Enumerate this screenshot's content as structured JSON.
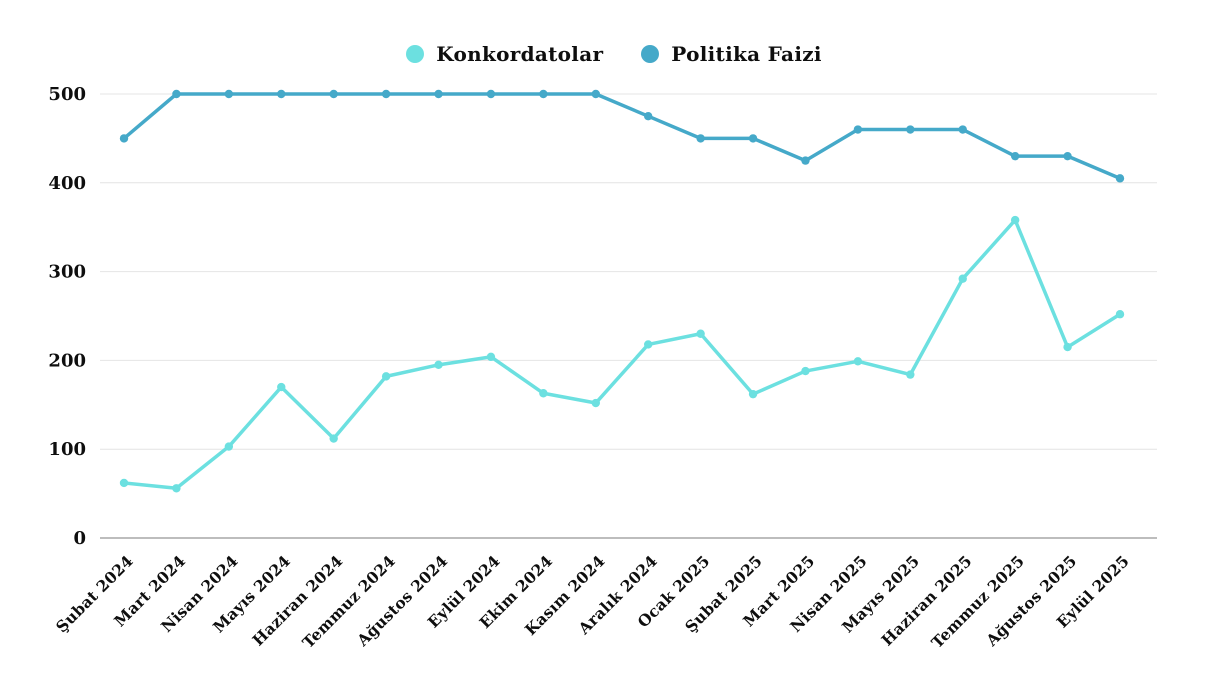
{
  "page": {
    "background": "#ffffff",
    "text_color": "#0e0e0e"
  },
  "legend": {
    "position": "top-center",
    "items": [
      {
        "label": "Konkordatolar",
        "color": "#6CE0E0"
      },
      {
        "label": "Politika Faizi",
        "color": "#45A9C9"
      }
    ]
  },
  "chart_data": {
    "type": "line",
    "title": "",
    "xlabel": "",
    "ylabel": "",
    "categories": [
      "Şubat 2024",
      "Mart 2024",
      "Nisan 2024",
      "Mayıs 2024",
      "Haziran 2024",
      "Temmuz 2024",
      "Ağustos 2024",
      "Eylül 2024",
      "Ekim 2024",
      "Kasım 2024",
      "Aralık 2024",
      "Ocak 2025",
      "Şubat 2025",
      "Mart 2025",
      "Nisan 2025",
      "Mayıs 2025",
      "Haziran 2025",
      "Temmuz 2025",
      "Ağustos 2025",
      "Eylül 2025"
    ],
    "series": [
      {
        "name": "Konkordatolar",
        "color": "#6CE0E0",
        "values": [
          62,
          56,
          103,
          170,
          112,
          182,
          195,
          204,
          163,
          152,
          218,
          230,
          162,
          188,
          199,
          184,
          292,
          358,
          215,
          252
        ]
      },
      {
        "name": "Politika Faizi",
        "color": "#45A9C9",
        "values": [
          450,
          500,
          500,
          500,
          500,
          500,
          500,
          500,
          500,
          500,
          475,
          450,
          450,
          425,
          460,
          460,
          460,
          430,
          430,
          405
        ]
      }
    ],
    "ylim": [
      0,
      500
    ],
    "yticks": [
      0,
      100,
      200,
      300,
      400,
      500
    ],
    "grid": "horizontal",
    "gridline_color": "#e4e4e4",
    "axis_line_color": "#bdbdbd",
    "legend_position": "top",
    "marker": "circle",
    "x_label_rotation": -45
  }
}
